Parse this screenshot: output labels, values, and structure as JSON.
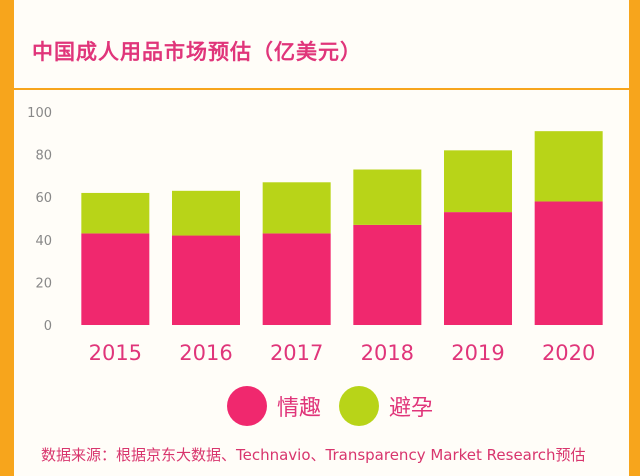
{
  "chart_data": {
    "type": "bar",
    "stacked": true,
    "title": "中国成人用品市场预估（亿美元）",
    "categories": [
      "2015",
      "2016",
      "2017",
      "2018",
      "2019",
      "2020"
    ],
    "series": [
      {
        "name": "情趣",
        "color": "#f0286e",
        "values": [
          43,
          42,
          43,
          47,
          53,
          58
        ]
      },
      {
        "name": "避孕",
        "color": "#b8d418",
        "values": [
          19,
          21,
          24,
          26,
          29,
          33
        ]
      }
    ],
    "yticks": [
      "0",
      "20",
      "40",
      "60",
      "80",
      "100"
    ],
    "ylim": [
      0,
      100
    ],
    "xlabel": "",
    "ylabel": "",
    "grid": false,
    "legend_position": "bottom"
  },
  "footer_text": "数据来源：根据京东大数据、Technavio、Transparency Market Research预估"
}
